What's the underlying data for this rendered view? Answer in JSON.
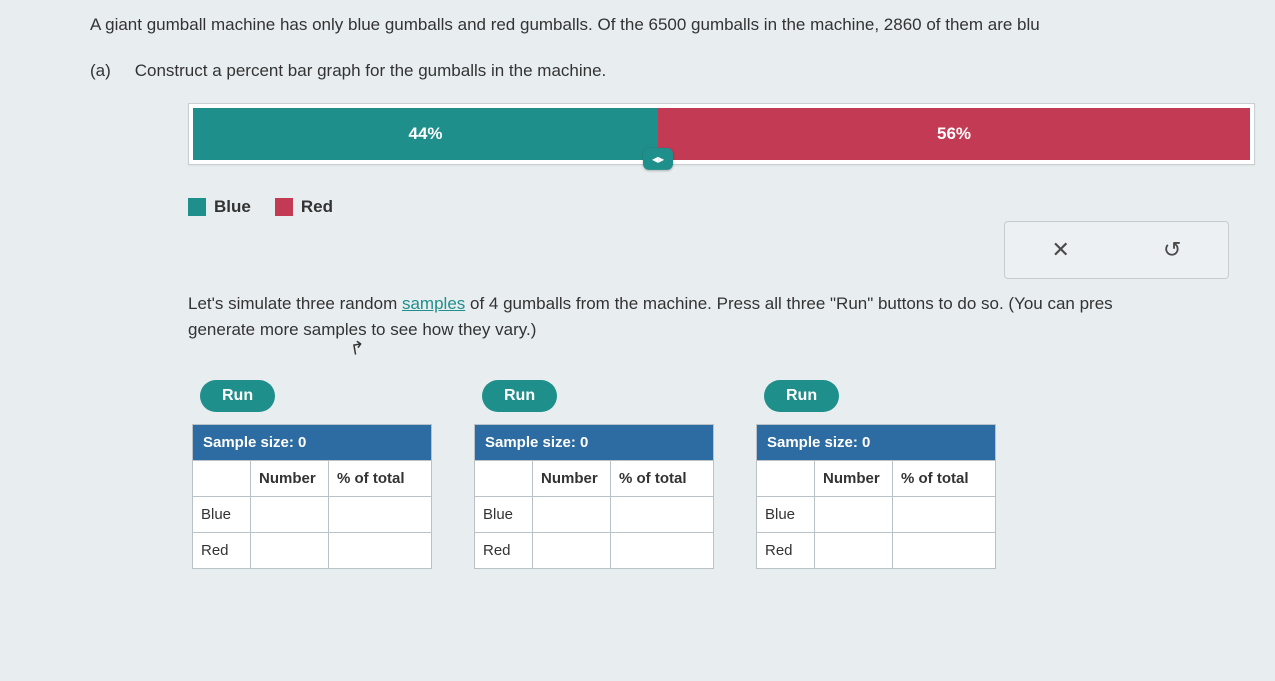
{
  "colors": {
    "blue": "#1f8f8b",
    "red": "#c33a54",
    "tableHeader": "#2d6ca2"
  },
  "problem": {
    "intro": "A giant gumball machine has only blue gumballs and red gumballs. Of the 6500 gumballs in the machine, 2860 of them are blu",
    "partLabel": "(a)",
    "partPrompt": "Construct a percent bar graph for the gumballs in the machine."
  },
  "percentBar": {
    "segments": [
      {
        "label": "44%",
        "percent": 44,
        "color": "blue"
      },
      {
        "label": "56%",
        "percent": 56,
        "color": "red"
      }
    ],
    "handlePositionPercent": 44,
    "handleGlyph": "◂▸"
  },
  "legend": {
    "items": [
      {
        "label": "Blue",
        "swatch": "blue"
      },
      {
        "label": "Red",
        "swatch": "red"
      }
    ]
  },
  "actions": {
    "clear": "✕",
    "reset": "↺"
  },
  "simulation": {
    "text_pre": "Let's simulate three random ",
    "samples_word": "samples",
    "text_post": " of 4 gumballs from the machine. Press all three \"Run\" buttons to do so. (You can pres",
    "text_line2": "generate more samples to see how they vary.)"
  },
  "samples": {
    "runLabel": "Run",
    "headerPrefix": "Sample size: ",
    "columns": [
      "",
      "Number",
      "% of total"
    ],
    "rowLabels": [
      "Blue",
      "Red"
    ],
    "blocks": [
      {
        "size": 0,
        "rows": [
          [
            "",
            ""
          ],
          [
            "",
            ""
          ]
        ]
      },
      {
        "size": 0,
        "rows": [
          [
            "",
            ""
          ],
          [
            "",
            ""
          ]
        ]
      },
      {
        "size": 0,
        "rows": [
          [
            "",
            ""
          ],
          [
            "",
            ""
          ]
        ]
      }
    ]
  }
}
